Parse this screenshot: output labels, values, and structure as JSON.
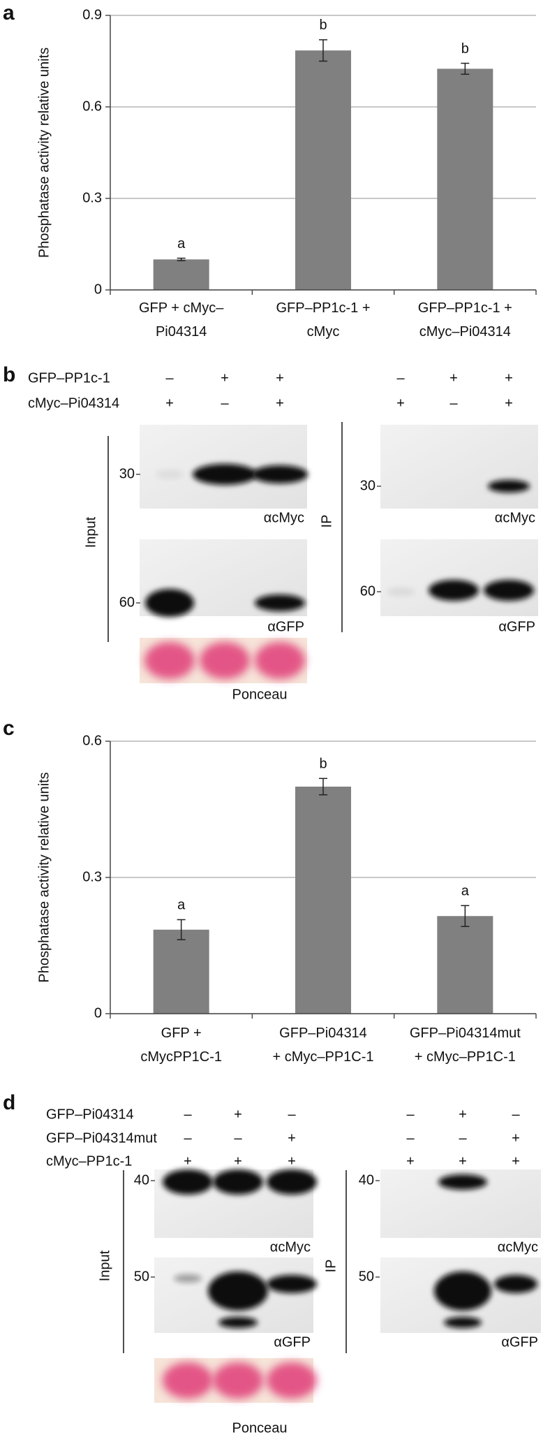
{
  "chart_data": [
    {
      "type": "bar",
      "panel": "a",
      "ylabel": "Phosphatase activity relative units",
      "categories": [
        "GFP + cMyc–\nPi04314",
        "GFP–PP1c-1 +\ncMyc",
        "GFP–PP1c-1 +\ncMyc–Pi04314"
      ],
      "values": [
        0.1,
        0.785,
        0.725
      ],
      "errors": [
        0.004,
        0.035,
        0.018
      ],
      "annotations": [
        "a",
        "b",
        "b"
      ],
      "color": "#808080",
      "ylim": [
        0,
        0.9
      ],
      "yticks": [
        0,
        0.3,
        0.6,
        0.9
      ],
      "grid": true
    },
    {
      "type": "bar",
      "panel": "c",
      "ylabel": "Phosphatase activity relative units",
      "categories": [
        "GFP +\ncMycPP1C-1",
        "GFP–Pi04314\n+ cMyc–PP1C-1",
        "GFP–Pi04314mut\n+ cMyc–PP1C-1"
      ],
      "values": [
        0.185,
        0.5,
        0.215
      ],
      "errors": [
        0.022,
        0.018,
        0.023
      ],
      "annotations": [
        "a",
        "b",
        "a"
      ],
      "color": "#808080",
      "ylim": [
        0,
        0.6
      ],
      "yticks": [
        0,
        0.3,
        0.6
      ],
      "grid": true
    }
  ],
  "blots": [
    {
      "panel": "b",
      "rows": [
        {
          "label": "GFP–PP1c-1",
          "input_signs": [
            "–",
            "+",
            "+"
          ],
          "ip_signs": [
            "–",
            "+",
            "+"
          ]
        },
        {
          "label": "cMyc–Pi04314",
          "input_signs": [
            "+",
            "–",
            "+"
          ],
          "ip_signs": [
            "+",
            "–",
            "+"
          ]
        }
      ],
      "input": {
        "label": "Input",
        "markers": [
          "30",
          "60"
        ],
        "antibodies": [
          "αcMyc",
          "αGFP"
        ],
        "stain": "Ponceau"
      },
      "ip": {
        "label": "IP",
        "markers": [
          "30",
          "60"
        ],
        "antibodies": [
          "αcMyc",
          "αGFP"
        ]
      }
    },
    {
      "panel": "d",
      "rows": [
        {
          "label": "GFP–Pi04314",
          "input_signs": [
            "–",
            "+",
            "–"
          ],
          "ip_signs": [
            "–",
            "+",
            "–"
          ]
        },
        {
          "label": "GFP–Pi04314mut",
          "input_signs": [
            "–",
            "–",
            "+"
          ],
          "ip_signs": [
            "–",
            "–",
            "+"
          ]
        },
        {
          "label": "cMyc–PP1c-1",
          "input_signs": [
            "+",
            "+",
            "+"
          ],
          "ip_signs": [
            "+",
            "+",
            "+"
          ]
        }
      ],
      "input": {
        "label": "Input",
        "markers": [
          "40",
          "50"
        ],
        "antibodies": [
          "αcMyc",
          "αGFP"
        ],
        "stain": "Ponceau"
      },
      "ip": {
        "label": "IP",
        "markers": [
          "40",
          "50"
        ],
        "antibodies": [
          "αcMyc",
          "αGFP"
        ]
      }
    }
  ]
}
